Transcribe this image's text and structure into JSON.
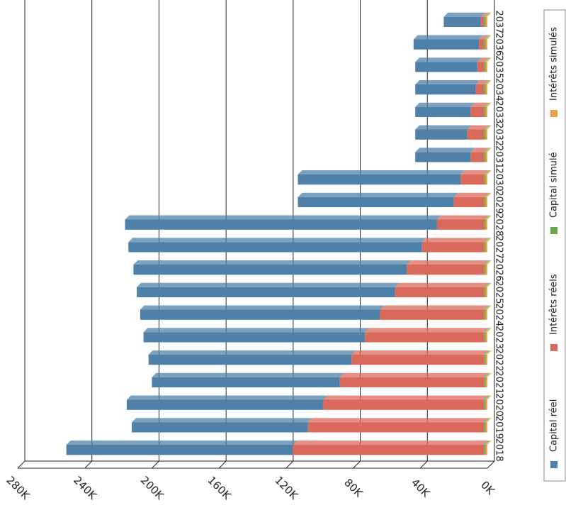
{
  "chart_data": {
    "type": "bar",
    "stacked": true,
    "orientation": "horizontal",
    "categories": [
      "2018",
      "2019",
      "2020",
      "2021",
      "2022",
      "2023",
      "2024",
      "2025",
      "2026",
      "2027",
      "2028",
      "2029",
      "2030",
      "2031",
      "2032",
      "2033",
      "2034",
      "2035",
      "2036",
      "2037"
    ],
    "series": [
      {
        "name": "Capital réel",
        "color": "#4f81a8",
        "values": [
          135000,
          105000,
          117000,
          112000,
          121000,
          132000,
          143000,
          154000,
          163000,
          175000,
          186000,
          93000,
          97000,
          33000,
          31000,
          33000,
          36000,
          37000,
          39000,
          22000
        ]
      },
      {
        "name": "Intérêts réels",
        "color": "#d9695a",
        "values": [
          114000,
          105000,
          96000,
          86000,
          79000,
          71000,
          62000,
          53000,
          46000,
          37000,
          28000,
          18000,
          14000,
          8000,
          10000,
          8000,
          5000,
          4000,
          3000,
          2000
        ]
      },
      {
        "name": "Capital simulé",
        "color": "#6aa84f",
        "values": [
          1000,
          1000,
          1000,
          1000,
          1000,
          1000,
          1000,
          1000,
          1000,
          1000,
          1000,
          1000,
          1000,
          1000,
          1000,
          1000,
          1000,
          1000,
          1000,
          1000
        ]
      },
      {
        "name": "Intérêts simulés",
        "color": "#f0a040",
        "values": [
          1000,
          1000,
          1000,
          1000,
          1000,
          1000,
          1000,
          1000,
          1000,
          1000,
          1000,
          1000,
          1000,
          1000,
          1000,
          1000,
          1000,
          1000,
          1000,
          1000
        ]
      }
    ],
    "xlim": [
      0,
      280000
    ],
    "xticks": [
      {
        "value": 0,
        "label": "0K"
      },
      {
        "value": 40000,
        "label": "40K"
      },
      {
        "value": 80000,
        "label": "80K"
      },
      {
        "value": 120000,
        "label": "120K"
      },
      {
        "value": 160000,
        "label": "160K"
      },
      {
        "value": 200000,
        "label": "200K"
      },
      {
        "value": 240000,
        "label": "240K"
      },
      {
        "value": 280000,
        "label": "280K"
      }
    ],
    "grid": true,
    "legend": "right"
  }
}
